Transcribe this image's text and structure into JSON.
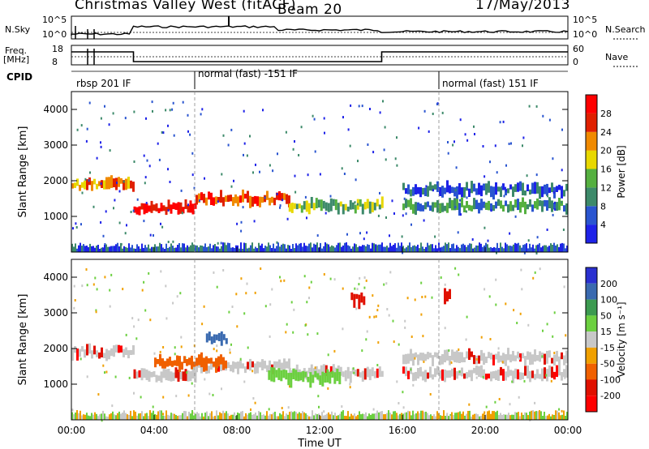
{
  "header": {
    "station": "Christmas Valley West (fitACF)",
    "beam": "Beam 20",
    "date": "17/May/2013"
  },
  "noise_panel": {
    "left_label": "N.Sky",
    "right_label": "N.Search",
    "left_ticks": [
      "10^5",
      "10^0"
    ],
    "right_ticks": [
      "10^5",
      "10^0"
    ]
  },
  "freq_panel": {
    "left_label_1": "Freq.",
    "left_label_2": "[MHz]",
    "right_label": "Nave",
    "left_ticks": [
      "18",
      "8"
    ],
    "right_ticks": [
      "60",
      "0"
    ]
  },
  "cpid": {
    "label": "CPID",
    "modes": [
      "rbsp 201 IF",
      "normal (fast) -151 IF",
      "normal (fast) 151 IF"
    ]
  },
  "power_panel": {
    "ylabel": "Slant Range [km]",
    "yticks": [
      "1000",
      "2000",
      "3000",
      "4000"
    ],
    "colorbar_label": "Power [dB]",
    "colorbar_ticks": [
      "4",
      "8",
      "12",
      "16",
      "20",
      "24",
      "28"
    ],
    "colors": [
      "#1e22e8",
      "#2a55d0",
      "#3d8a6a",
      "#55b040",
      "#e8d800",
      "#f08a00",
      "#e02000",
      "#ff0000"
    ]
  },
  "velocity_panel": {
    "ylabel": "Slant Range [km]",
    "yticks": [
      "1000",
      "2000",
      "3000",
      "4000"
    ],
    "colorbar_label": "Velocity [m s⁻¹]",
    "colorbar_ticks": [
      "200",
      "100",
      "50",
      "15",
      "-15",
      "-50",
      "-100",
      "-200"
    ],
    "colors": [
      "#2a30d0",
      "#3a6ab0",
      "#3c9a50",
      "#6cd040",
      "#c8c8c8",
      "#f0a000",
      "#f06000",
      "#e01000",
      "#ff0000"
    ]
  },
  "time_axis": {
    "label": "Time UT",
    "ticks": [
      "00:00",
      "04:00",
      "08:00",
      "12:00",
      "16:00",
      "20:00",
      "00:00"
    ]
  },
  "chart_data": {
    "type": "heatmap",
    "x_range_hours": [
      0,
      24
    ],
    "y_range_km": [
      0,
      4500
    ],
    "cpid_change_hours": [
      6.0,
      18.0
    ],
    "noise_search_level": "10^1–10^2",
    "frequency_mhz_segments": [
      {
        "start_h": 0.0,
        "end_h": 3.0,
        "freq_mhz": 16
      },
      {
        "start_h": 3.0,
        "end_h": 15.0,
        "freq_mhz": 10
      },
      {
        "start_h": 15.0,
        "end_h": 24.0,
        "freq_mhz": 16
      }
    ],
    "power_bands": [
      {
        "start_h": 0.0,
        "end_h": 3.0,
        "range_km": 1900,
        "power_db": 22
      },
      {
        "start_h": 3.0,
        "end_h": 6.0,
        "range_km": 1250,
        "power_db": 30
      },
      {
        "start_h": 6.0,
        "end_h": 10.5,
        "range_km": 1500,
        "power_db": 26
      },
      {
        "start_h": 10.5,
        "end_h": 15.0,
        "range_km": 1300,
        "power_db": 14
      },
      {
        "start_h": 16.0,
        "end_h": 24.0,
        "range_km": 1300,
        "power_db": 10
      },
      {
        "start_h": 16.0,
        "end_h": 24.0,
        "range_km": 1750,
        "power_db": 8
      }
    ],
    "velocity_patches": [
      {
        "start_h": 4.0,
        "end_h": 7.5,
        "range_km": 1600,
        "velocity_ms": -50
      },
      {
        "start_h": 9.5,
        "end_h": 13.0,
        "range_km": 1200,
        "velocity_ms": 30
      },
      {
        "start_h": 6.5,
        "end_h": 7.5,
        "range_km": 2300,
        "velocity_ms": 150
      },
      {
        "start_h": 13.5,
        "end_h": 14.2,
        "range_km": 3400,
        "velocity_ms": -150
      },
      {
        "start_h": 18.0,
        "end_h": 18.3,
        "range_km": 3500,
        "velocity_ms": -200
      }
    ]
  }
}
